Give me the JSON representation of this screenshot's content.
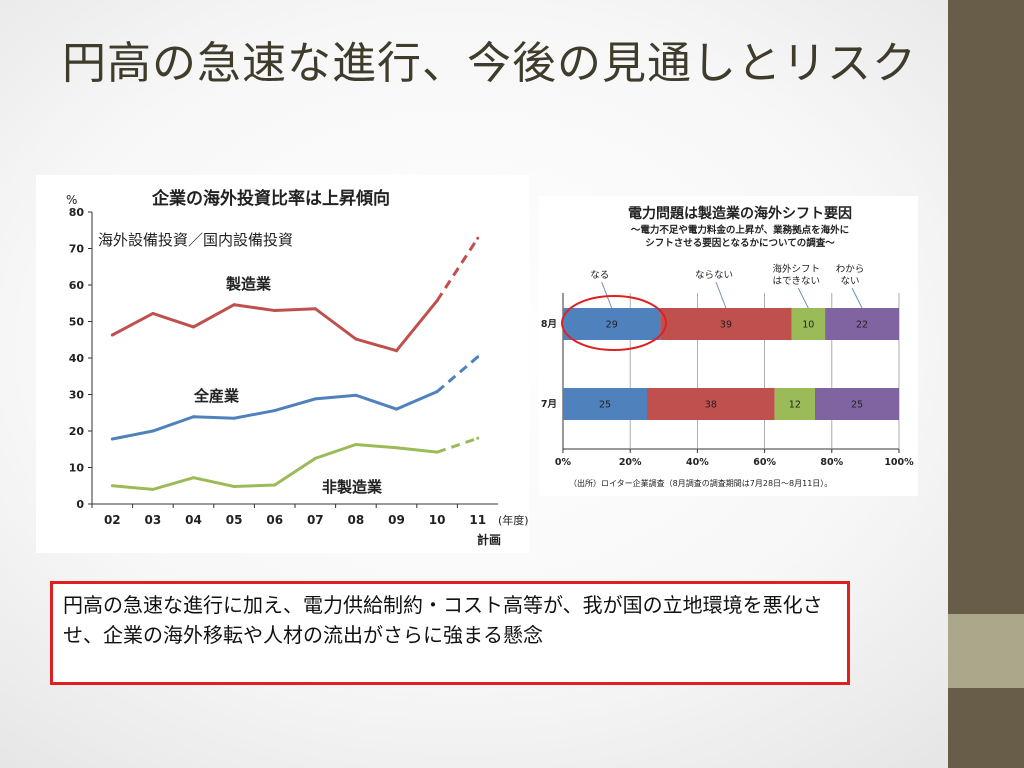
{
  "slide": {
    "title": "円高の急速な進行、今後の見通しとリスク",
    "callout_text": "円高の急速な進行に加え、電力供給制約・コスト高等が、我が国の立地環境を悪化させ、企業の海外移転や人材の流出がさらに強まる懸念"
  },
  "chart_data": [
    {
      "type": "line",
      "title": "企業の海外投資比率は上昇傾向",
      "subtitle": "海外設備投資／国内設備投資",
      "ylabel": "%",
      "x": [
        "02",
        "03",
        "04",
        "05",
        "06",
        "07",
        "08",
        "09",
        "10",
        "11"
      ],
      "x_unit": "(年度)",
      "x_last_note": "計画",
      "ylim": [
        0,
        80
      ],
      "yticks": [
        "0",
        "10",
        "20",
        "30",
        "40",
        "50",
        "60",
        "70",
        "80"
      ],
      "series": [
        {
          "name": "製造業",
          "color": "#c0504d",
          "values": [
            46.3,
            52.2,
            48.5,
            54.6,
            53.0,
            53.5,
            45.2,
            42.0,
            55.7,
            72.8
          ]
        },
        {
          "name": "全産業",
          "color": "#4f81bd",
          "values": [
            17.8,
            20.0,
            23.9,
            23.5,
            25.6,
            28.8,
            29.8,
            26.0,
            30.8,
            40.3
          ]
        },
        {
          "name": "非製造業",
          "color": "#9bbb59",
          "values": [
            5.0,
            4.0,
            7.2,
            4.8,
            5.2,
            12.5,
            16.3,
            15.4,
            14.2,
            18.0
          ]
        }
      ],
      "dashed_from_index": 8
    },
    {
      "type": "bar",
      "stacked": "percent",
      "title": "電力問題は製造業の海外シフト要因",
      "subtitle_lines": [
        "～電力不足や電力料金の上昇が、業務拠点を海外に",
        "シフトさせる要因となるかについての調査～"
      ],
      "categories": [
        "8月",
        "7月"
      ],
      "series": [
        {
          "name": "なる",
          "color": "#4f81bd",
          "values": [
            29,
            25
          ]
        },
        {
          "name": "ならない",
          "color": "#c0504d",
          "values": [
            39,
            38
          ]
        },
        {
          "name": "海外シフトはできない",
          "label_lines": [
            "海外シフト",
            "はできない"
          ],
          "color": "#9bbb59",
          "values": [
            10,
            12
          ]
        },
        {
          "name": "わからない",
          "label_lines": [
            "わから",
            "ない"
          ],
          "color": "#8064a2",
          "values": [
            22,
            25
          ]
        }
      ],
      "xticks": [
        "0%",
        "20%",
        "40%",
        "60%",
        "80%",
        "100%"
      ],
      "source": "（出所）ロイター企業調査（8月調査の調査期間は7月28日～8月11日）。"
    }
  ]
}
